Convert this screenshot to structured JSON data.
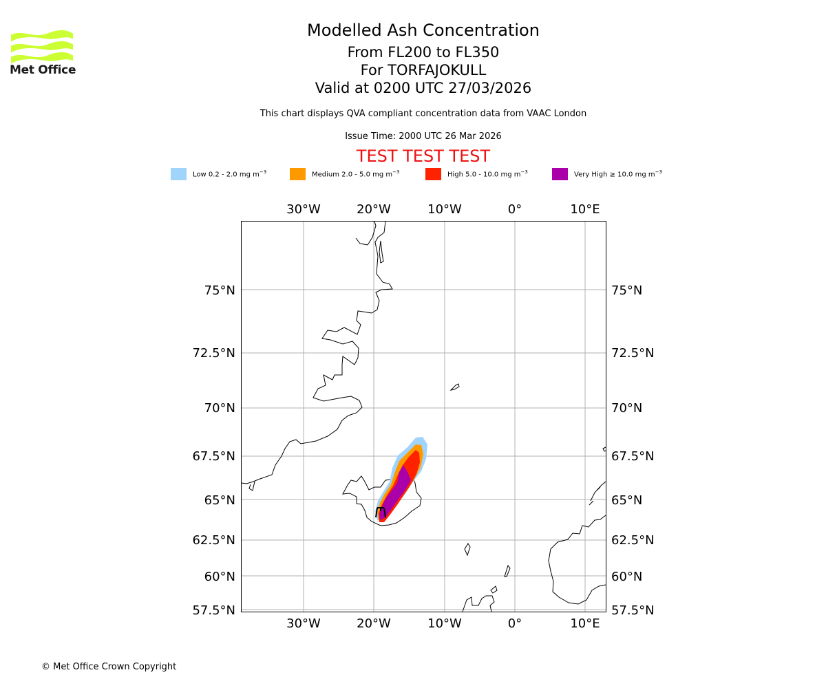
{
  "brand": {
    "name": "Met Office",
    "logo_color": "#ccff33"
  },
  "header": {
    "title": "Modelled Ash Concentration",
    "levels": "From FL200 to FL350",
    "volcano": "For TORFAJOKULL",
    "valid": "Valid at 0200 UTC 27/03/2026",
    "description": "This chart displays QVA compliant concentration data from VAAC London",
    "issue_time": "Issue Time: 2000 UTC 26 Mar 2026",
    "test_banner": "TEST TEST TEST",
    "test_color": "#ee1111"
  },
  "legend": [
    {
      "label": "Low 0.2 - 2.0 mg m",
      "exp": "−3",
      "color": "#a0d4fa"
    },
    {
      "label": "Medium 2.0 - 5.0 mg m",
      "exp": "−3",
      "color": "#ff9900"
    },
    {
      "label": "High 5.0 - 10.0 mg m",
      "exp": "−3",
      "color": "#ff2200"
    },
    {
      "label": "Very High  ≥  10.0 mg m",
      "exp": "−3",
      "color": "#aa00aa"
    }
  ],
  "map": {
    "lon_labels": [
      "30°W",
      "20°W",
      "10°W",
      "0°",
      "10°E"
    ],
    "lat_labels": [
      "75°N",
      "72.5°N",
      "70°N",
      "67.5°N",
      "65°N",
      "62.5°N",
      "60°N",
      "57.5°N"
    ],
    "volcano_marker": "volcano-icon"
  },
  "footer": {
    "copyright": "© Met Office Crown Copyright"
  }
}
